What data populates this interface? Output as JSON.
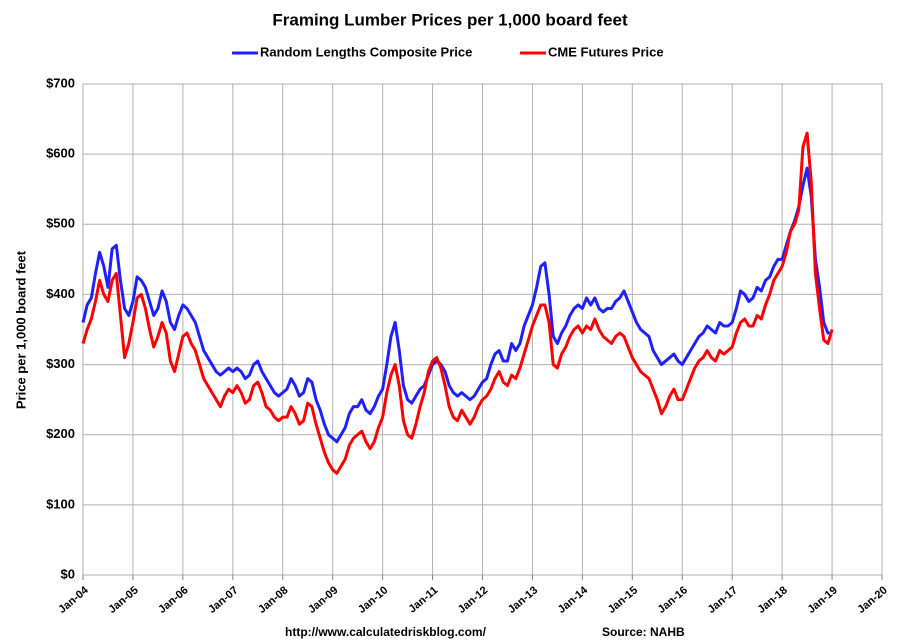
{
  "chart_data": {
    "type": "line",
    "title": "Framing Lumber Prices per 1,000 board feet",
    "ylabel": "Price per 1,000 board feet",
    "footer_left": "http://www.calculatedriskblog.com/",
    "footer_right": "Source: NAHB",
    "grid": true,
    "legend": "top",
    "xlim": [
      "2004-01",
      "2020-01"
    ],
    "xticks": [
      {
        "value": "2004-01",
        "label": "Jan-04"
      },
      {
        "value": "2005-01",
        "label": "Jan-05"
      },
      {
        "value": "2006-01",
        "label": "Jan-06"
      },
      {
        "value": "2007-01",
        "label": "Jan-07"
      },
      {
        "value": "2008-01",
        "label": "Jan-08"
      },
      {
        "value": "2009-01",
        "label": "Jan-09"
      },
      {
        "value": "2010-01",
        "label": "Jan-10"
      },
      {
        "value": "2011-01",
        "label": "Jan-11"
      },
      {
        "value": "2012-01",
        "label": "Jan-12"
      },
      {
        "value": "2013-01",
        "label": "Jan-13"
      },
      {
        "value": "2014-01",
        "label": "Jan-14"
      },
      {
        "value": "2015-01",
        "label": "Jan-15"
      },
      {
        "value": "2016-01",
        "label": "Jan-16"
      },
      {
        "value": "2017-01",
        "label": "Jan-17"
      },
      {
        "value": "2018-01",
        "label": "Jan-18"
      },
      {
        "value": "2019-01",
        "label": "Jan-19"
      },
      {
        "value": "2020-01",
        "label": "Jan-20"
      }
    ],
    "ylim": [
      0,
      700
    ],
    "yticks": [
      {
        "value": 0,
        "label": "$0"
      },
      {
        "value": 100,
        "label": "$100"
      },
      {
        "value": 200,
        "label": "$200"
      },
      {
        "value": 300,
        "label": "$300"
      },
      {
        "value": 400,
        "label": "$400"
      },
      {
        "value": 500,
        "label": "$500"
      },
      {
        "value": 600,
        "label": "$600"
      },
      {
        "value": 700,
        "label": "$700"
      }
    ],
    "x": [
      "2004-01",
      "2004-02",
      "2004-03",
      "2004-04",
      "2004-05",
      "2004-06",
      "2004-07",
      "2004-08",
      "2004-09",
      "2004-10",
      "2004-11",
      "2004-12",
      "2005-01",
      "2005-02",
      "2005-03",
      "2005-04",
      "2005-05",
      "2005-06",
      "2005-07",
      "2005-08",
      "2005-09",
      "2005-10",
      "2005-11",
      "2005-12",
      "2006-01",
      "2006-02",
      "2006-03",
      "2006-04",
      "2006-05",
      "2006-06",
      "2006-07",
      "2006-08",
      "2006-09",
      "2006-10",
      "2006-11",
      "2006-12",
      "2007-01",
      "2007-02",
      "2007-03",
      "2007-04",
      "2007-05",
      "2007-06",
      "2007-07",
      "2007-08",
      "2007-09",
      "2007-10",
      "2007-11",
      "2007-12",
      "2008-01",
      "2008-02",
      "2008-03",
      "2008-04",
      "2008-05",
      "2008-06",
      "2008-07",
      "2008-08",
      "2008-09",
      "2008-10",
      "2008-11",
      "2008-12",
      "2009-01",
      "2009-02",
      "2009-03",
      "2009-04",
      "2009-05",
      "2009-06",
      "2009-07",
      "2009-08",
      "2009-09",
      "2009-10",
      "2009-11",
      "2009-12",
      "2010-01",
      "2010-02",
      "2010-03",
      "2010-04",
      "2010-05",
      "2010-06",
      "2010-07",
      "2010-08",
      "2010-09",
      "2010-10",
      "2010-11",
      "2010-12",
      "2011-01",
      "2011-02",
      "2011-03",
      "2011-04",
      "2011-05",
      "2011-06",
      "2011-07",
      "2011-08",
      "2011-09",
      "2011-10",
      "2011-11",
      "2011-12",
      "2012-01",
      "2012-02",
      "2012-03",
      "2012-04",
      "2012-05",
      "2012-06",
      "2012-07",
      "2012-08",
      "2012-09",
      "2012-10",
      "2012-11",
      "2012-12",
      "2013-01",
      "2013-02",
      "2013-03",
      "2013-04",
      "2013-05",
      "2013-06",
      "2013-07",
      "2013-08",
      "2013-09",
      "2013-10",
      "2013-11",
      "2013-12",
      "2014-01",
      "2014-02",
      "2014-03",
      "2014-04",
      "2014-05",
      "2014-06",
      "2014-07",
      "2014-08",
      "2014-09",
      "2014-10",
      "2014-11",
      "2014-12",
      "2015-01",
      "2015-02",
      "2015-03",
      "2015-04",
      "2015-05",
      "2015-06",
      "2015-07",
      "2015-08",
      "2015-09",
      "2015-10",
      "2015-11",
      "2015-12",
      "2016-01",
      "2016-02",
      "2016-03",
      "2016-04",
      "2016-05",
      "2016-06",
      "2016-07",
      "2016-08",
      "2016-09",
      "2016-10",
      "2016-11",
      "2016-12",
      "2017-01",
      "2017-02",
      "2017-03",
      "2017-04",
      "2017-05",
      "2017-06",
      "2017-07",
      "2017-08",
      "2017-09",
      "2017-10",
      "2017-11",
      "2017-12",
      "2018-01",
      "2018-02",
      "2018-03",
      "2018-04",
      "2018-05",
      "2018-06",
      "2018-07",
      "2018-08",
      "2018-09",
      "2018-10",
      "2018-11",
      "2018-12",
      "2019-01"
    ],
    "series": [
      {
        "name": "Random Lengths Composite Price",
        "color": "#1f1fff",
        "values": [
          360,
          385,
          395,
          430,
          460,
          440,
          410,
          465,
          470,
          420,
          380,
          370,
          390,
          425,
          420,
          410,
          390,
          370,
          380,
          405,
          390,
          360,
          350,
          370,
          385,
          380,
          370,
          360,
          340,
          320,
          310,
          300,
          290,
          285,
          290,
          295,
          290,
          295,
          290,
          280,
          285,
          300,
          305,
          290,
          280,
          270,
          260,
          255,
          260,
          265,
          280,
          270,
          255,
          260,
          280,
          275,
          250,
          235,
          215,
          200,
          195,
          190,
          200,
          210,
          230,
          240,
          240,
          250,
          235,
          230,
          240,
          255,
          265,
          300,
          340,
          360,
          320,
          270,
          250,
          245,
          255,
          265,
          270,
          285,
          300,
          305,
          300,
          290,
          270,
          260,
          255,
          260,
          255,
          250,
          255,
          265,
          275,
          280,
          300,
          315,
          320,
          305,
          305,
          330,
          320,
          330,
          355,
          370,
          385,
          410,
          440,
          445,
          400,
          340,
          330,
          345,
          355,
          370,
          380,
          385,
          380,
          395,
          385,
          395,
          380,
          375,
          380,
          380,
          390,
          395,
          405,
          390,
          375,
          360,
          350,
          345,
          340,
          320,
          310,
          300,
          305,
          310,
          315,
          305,
          300,
          310,
          320,
          330,
          340,
          345,
          355,
          350,
          345,
          360,
          355,
          355,
          360,
          380,
          405,
          400,
          390,
          395,
          410,
          405,
          420,
          425,
          440,
          450,
          450,
          470,
          490,
          505,
          525,
          555,
          580,
          540,
          450,
          410,
          360,
          345,
          345
        ]
      },
      {
        "name": "CME Futures Price",
        "color": "#ff0000",
        "values": [
          330,
          350,
          365,
          390,
          420,
          400,
          390,
          420,
          430,
          370,
          310,
          330,
          360,
          395,
          400,
          380,
          350,
          325,
          340,
          360,
          345,
          305,
          290,
          315,
          340,
          345,
          330,
          320,
          300,
          280,
          270,
          260,
          250,
          240,
          255,
          265,
          260,
          270,
          260,
          245,
          250,
          270,
          275,
          260,
          240,
          235,
          225,
          220,
          225,
          225,
          240,
          230,
          215,
          220,
          245,
          240,
          215,
          195,
          175,
          160,
          150,
          145,
          155,
          165,
          185,
          195,
          200,
          205,
          190,
          180,
          190,
          210,
          225,
          260,
          285,
          300,
          270,
          220,
          200,
          195,
          215,
          240,
          260,
          290,
          305,
          310,
          295,
          270,
          240,
          225,
          220,
          235,
          225,
          215,
          225,
          240,
          250,
          255,
          265,
          280,
          290,
          275,
          270,
          285,
          280,
          295,
          315,
          335,
          355,
          370,
          385,
          385,
          360,
          300,
          295,
          315,
          325,
          340,
          350,
          355,
          345,
          355,
          350,
          365,
          350,
          340,
          335,
          330,
          340,
          345,
          340,
          325,
          310,
          300,
          290,
          285,
          280,
          265,
          250,
          230,
          240,
          255,
          265,
          250,
          250,
          265,
          280,
          295,
          305,
          310,
          320,
          310,
          305,
          320,
          315,
          320,
          325,
          345,
          360,
          365,
          355,
          355,
          370,
          365,
          385,
          400,
          420,
          430,
          440,
          460,
          490,
          500,
          520,
          610,
          630,
          560,
          430,
          380,
          335,
          330,
          350
        ]
      }
    ]
  }
}
